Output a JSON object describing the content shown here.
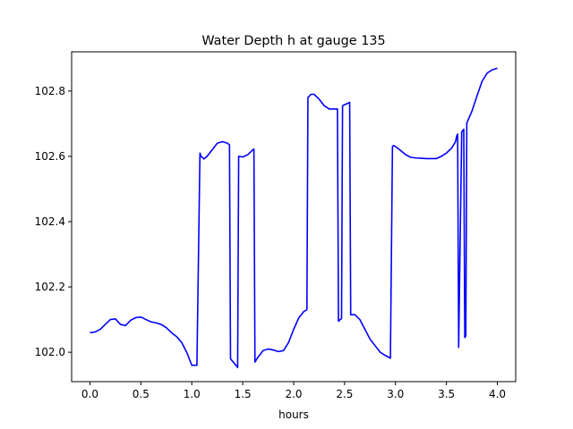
{
  "chart_data": {
    "type": "line",
    "title": "Water Depth h at gauge 135",
    "xlabel": "hours",
    "ylabel": "",
    "xlim": [
      -0.18,
      4.18
    ],
    "ylim": [
      101.91,
      102.92
    ],
    "xticks": [
      0.0,
      0.5,
      1.0,
      1.5,
      2.0,
      2.5,
      3.0,
      3.5,
      4.0
    ],
    "xtick_labels": [
      "0.0",
      "0.5",
      "1.0",
      "1.5",
      "2.0",
      "2.5",
      "3.0",
      "3.5",
      "4.0"
    ],
    "yticks": [
      102.0,
      102.2,
      102.4,
      102.6,
      102.8
    ],
    "ytick_labels": [
      "102.0",
      "102.2",
      "102.4",
      "102.6",
      "102.8"
    ],
    "grid": false,
    "series": [
      {
        "color": "#0000ff",
        "x": [
          0.0,
          0.05,
          0.1,
          0.15,
          0.2,
          0.25,
          0.3,
          0.35,
          0.4,
          0.45,
          0.5,
          0.55,
          0.6,
          0.65,
          0.7,
          0.75,
          0.8,
          0.85,
          0.9,
          0.95,
          1.0,
          1.05,
          1.08,
          1.09,
          1.12,
          1.15,
          1.2,
          1.25,
          1.3,
          1.35,
          1.37,
          1.38,
          1.42,
          1.45,
          1.46,
          1.5,
          1.55,
          1.6,
          1.61,
          1.62,
          1.65,
          1.7,
          1.75,
          1.8,
          1.85,
          1.9,
          1.95,
          2.0,
          2.05,
          2.1,
          2.13,
          2.14,
          2.17,
          2.2,
          2.25,
          2.3,
          2.35,
          2.4,
          2.43,
          2.44,
          2.45,
          2.47,
          2.48,
          2.55,
          2.56,
          2.6,
          2.65,
          2.7,
          2.75,
          2.8,
          2.85,
          2.9,
          2.95,
          2.97,
          2.98,
          3.0,
          3.05,
          3.1,
          3.15,
          3.2,
          3.25,
          3.3,
          3.35,
          3.4,
          3.45,
          3.5,
          3.55,
          3.59,
          3.6,
          3.61,
          3.62,
          3.65,
          3.67,
          3.68,
          3.69,
          3.7,
          3.75,
          3.8,
          3.85,
          3.9,
          3.95,
          4.0
        ],
        "y": [
          102.06,
          102.062,
          102.07,
          102.085,
          102.1,
          102.102,
          102.085,
          102.082,
          102.098,
          102.106,
          102.108,
          102.1,
          102.093,
          102.09,
          102.085,
          102.075,
          102.06,
          102.048,
          102.03,
          102.0,
          101.96,
          101.96,
          102.61,
          102.6,
          102.592,
          102.6,
          102.62,
          102.64,
          102.645,
          102.64,
          102.635,
          101.98,
          101.965,
          101.953,
          102.6,
          102.598,
          102.605,
          102.62,
          102.622,
          101.97,
          101.985,
          102.005,
          102.01,
          102.007,
          102.002,
          102.005,
          102.03,
          102.07,
          102.105,
          102.125,
          102.13,
          102.78,
          102.79,
          102.79,
          102.775,
          102.755,
          102.745,
          102.745,
          102.745,
          102.095,
          102.098,
          102.103,
          102.755,
          102.765,
          102.115,
          102.115,
          102.1,
          102.07,
          102.04,
          102.02,
          102.0,
          101.99,
          101.982,
          102.63,
          102.633,
          102.63,
          102.618,
          102.605,
          102.597,
          102.595,
          102.594,
          102.593,
          102.593,
          102.593,
          102.6,
          102.61,
          102.625,
          102.645,
          102.662,
          102.668,
          102.015,
          102.675,
          102.683,
          102.045,
          102.05,
          102.702,
          102.738,
          102.785,
          102.83,
          102.855,
          102.865,
          102.87
        ]
      }
    ]
  }
}
